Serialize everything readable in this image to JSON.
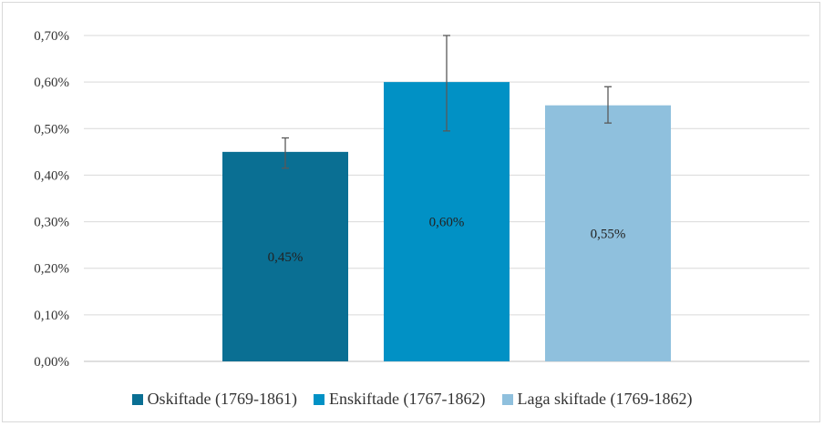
{
  "chart_data": {
    "type": "bar",
    "categories": [
      "Oskiftade (1769-1861)",
      "Enskiftade (1767-1862)",
      "Laga skiftade (1769-1862)"
    ],
    "values": [
      0.45,
      0.6,
      0.55
    ],
    "value_unit": "%",
    "error_bars": [
      {
        "low": 0.415,
        "high": 0.48
      },
      {
        "low": 0.495,
        "high": 0.7
      },
      {
        "low": 0.512,
        "high": 0.59
      }
    ],
    "data_labels": [
      "0,45%",
      "0,60%",
      "0,55%"
    ],
    "ylim": [
      0,
      0.7
    ],
    "yticks": [
      0.0,
      0.1,
      0.2,
      0.3,
      0.4,
      0.5,
      0.6,
      0.7
    ],
    "ytick_labels": [
      "0,00%",
      "0,10%",
      "0,20%",
      "0,30%",
      "0,40%",
      "0,50%",
      "0,60%",
      "0,70%"
    ],
    "title": "",
    "xlabel": "",
    "ylabel": "",
    "grid": true,
    "legend_position": "bottom",
    "colors": [
      "#0a6f93",
      "#0191c5",
      "#8fc0dd"
    ]
  }
}
